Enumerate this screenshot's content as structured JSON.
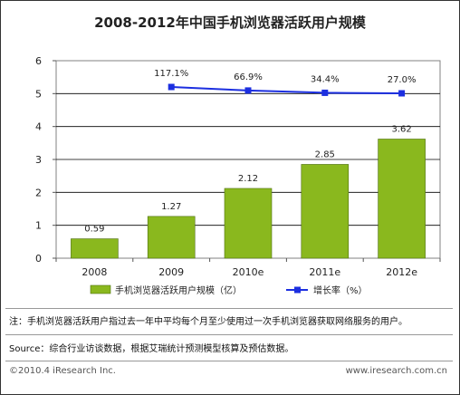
{
  "chart_data": {
    "type": "bar",
    "title": "2008-2012年中国手机浏览器活跃用户规模",
    "categories": [
      "2008",
      "2009",
      "2010e",
      "2011e",
      "2012e"
    ],
    "ylim": [
      0,
      6
    ],
    "yticks": [
      "0",
      "1",
      "2",
      "3",
      "4",
      "5",
      "6"
    ],
    "grid": true,
    "legend_position": "bottom",
    "series": [
      {
        "name": "手机浏览器活跃用户规模（亿）",
        "type": "bar",
        "color": "#8ab81e",
        "values": [
          0.59,
          1.27,
          2.12,
          2.85,
          3.62
        ],
        "labels": [
          "0.59",
          "1.27",
          "2.12",
          "2.85",
          "3.62"
        ]
      },
      {
        "name": "增长率（%）",
        "type": "line",
        "color": "#1c2fe0",
        "values": [
          null,
          117.1,
          66.9,
          34.4,
          27.0
        ],
        "labels": [
          "",
          "117.1%",
          "66.9%",
          "34.4%",
          "27.0%"
        ]
      }
    ]
  },
  "notes": {
    "note": "注：手机浏览器活跃用户指过去一年中平均每个月至少使用过一次手机浏览器获取网络服务的用户。",
    "source": "Source：综合行业访谈数据，根据艾瑞统计预测模型核算及预估数据。"
  },
  "footer": {
    "copyright": "©2010.4 iResearch Inc.",
    "website": "www.iresearch.com.cn"
  }
}
